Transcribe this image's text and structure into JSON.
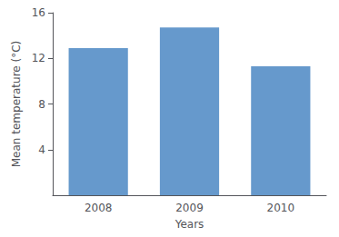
{
  "chart_data": {
    "type": "bar",
    "categories": [
      "2008",
      "2009",
      "2010"
    ],
    "values": [
      12.9,
      14.7,
      11.3
    ],
    "color": "#6699cc",
    "xlabel": "Years",
    "ylabel": "Mean temperature (°C)",
    "ylim": [
      0,
      16
    ],
    "yticks": [
      4,
      8,
      12,
      16
    ],
    "grid": false
  }
}
